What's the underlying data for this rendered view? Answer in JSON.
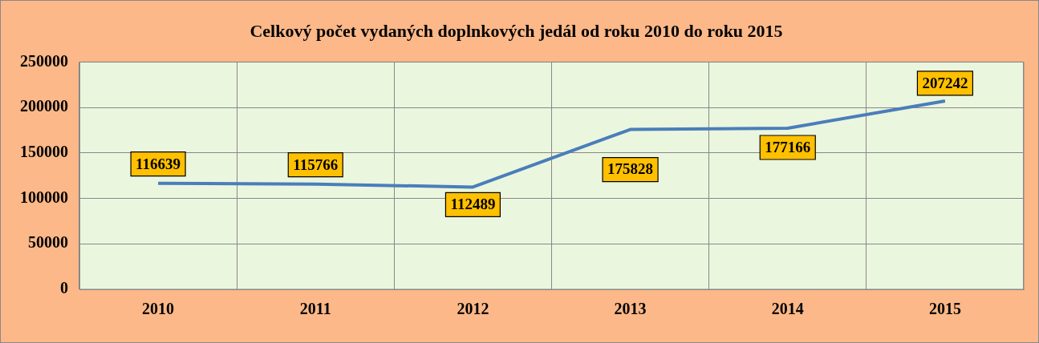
{
  "chart_data": {
    "type": "line",
    "title": "Celkový počet vydaných doplnkových jedál od roku 2010 do roku 2015",
    "categories": [
      "2010",
      "2011",
      "2012",
      "2013",
      "2014",
      "2015"
    ],
    "series": [
      {
        "color": "#4a7ebb",
        "values": [
          116639,
          115766,
          112489,
          175828,
          177166,
          207242
        ]
      }
    ],
    "ylim": [
      0,
      250000
    ],
    "yticks": [
      0,
      50000,
      100000,
      150000,
      200000,
      250000
    ],
    "grid": true,
    "legend": false,
    "marker": "none",
    "line_style": "solid",
    "data_labels": true
  }
}
